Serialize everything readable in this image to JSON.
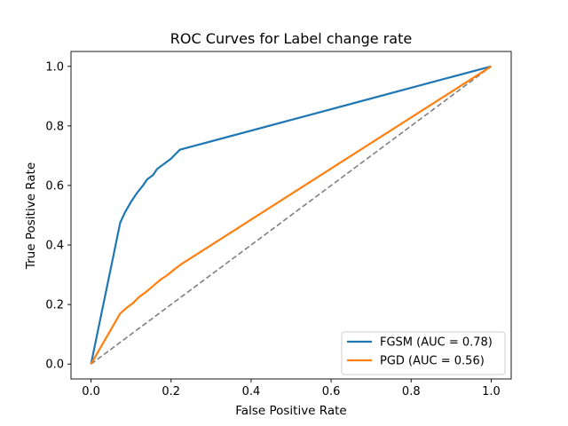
{
  "chart_data": {
    "type": "line",
    "title": "ROC Curves for Label change rate",
    "xlabel": "False Positive Rate",
    "ylabel": "True Positive Rate",
    "xlim": [
      -0.05,
      1.05
    ],
    "ylim": [
      -0.05,
      1.05
    ],
    "xticks": [
      "0.0",
      "0.2",
      "0.4",
      "0.6",
      "0.8",
      "1.0"
    ],
    "yticks": [
      "0.0",
      "0.2",
      "0.4",
      "0.6",
      "0.8",
      "1.0"
    ],
    "grid": false,
    "legend_position": "lower-right",
    "series": [
      {
        "name": "FGSM (AUC = 0.78)",
        "color": "#1f77b4",
        "x": [
          0.0,
          0.073,
          0.085,
          0.1,
          0.115,
          0.13,
          0.14,
          0.155,
          0.165,
          0.18,
          0.2,
          0.222,
          1.0
        ],
        "y": [
          0.0,
          0.475,
          0.51,
          0.545,
          0.575,
          0.6,
          0.62,
          0.635,
          0.655,
          0.67,
          0.69,
          0.72,
          1.0
        ]
      },
      {
        "name": "PGD (AUC = 0.56)",
        "color": "#ff7f0e",
        "x": [
          0.0,
          0.073,
          0.09,
          0.105,
          0.12,
          0.14,
          0.16,
          0.175,
          0.19,
          0.21,
          0.225,
          1.0
        ],
        "y": [
          0.0,
          0.17,
          0.19,
          0.205,
          0.225,
          0.245,
          0.268,
          0.285,
          0.298,
          0.32,
          0.335,
          1.0
        ]
      },
      {
        "color": "#808080",
        "style": "dashed",
        "x": [
          0.0,
          1.0
        ],
        "y": [
          0.0,
          1.0
        ]
      }
    ]
  }
}
